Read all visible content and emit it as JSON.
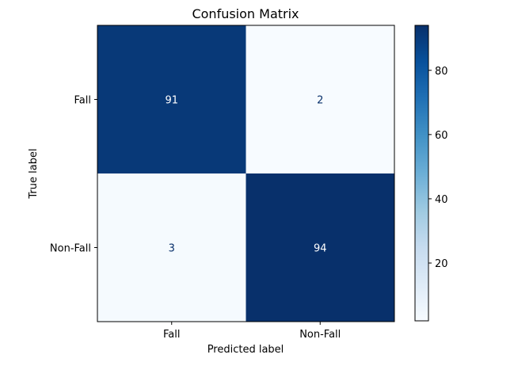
{
  "chart_data": {
    "type": "heatmap",
    "title": "Confusion Matrix",
    "xlabel": "Predicted label",
    "ylabel": "True label",
    "x_categories": [
      "Fall",
      "Non-Fall"
    ],
    "y_categories": [
      "Fall",
      "Non-Fall"
    ],
    "values": [
      [
        91,
        2
      ],
      [
        3,
        94
      ]
    ],
    "colormap": "Blues",
    "color_range": [
      2,
      94
    ],
    "colorbar_ticks": [
      20,
      40,
      60,
      80
    ],
    "grid": false
  }
}
